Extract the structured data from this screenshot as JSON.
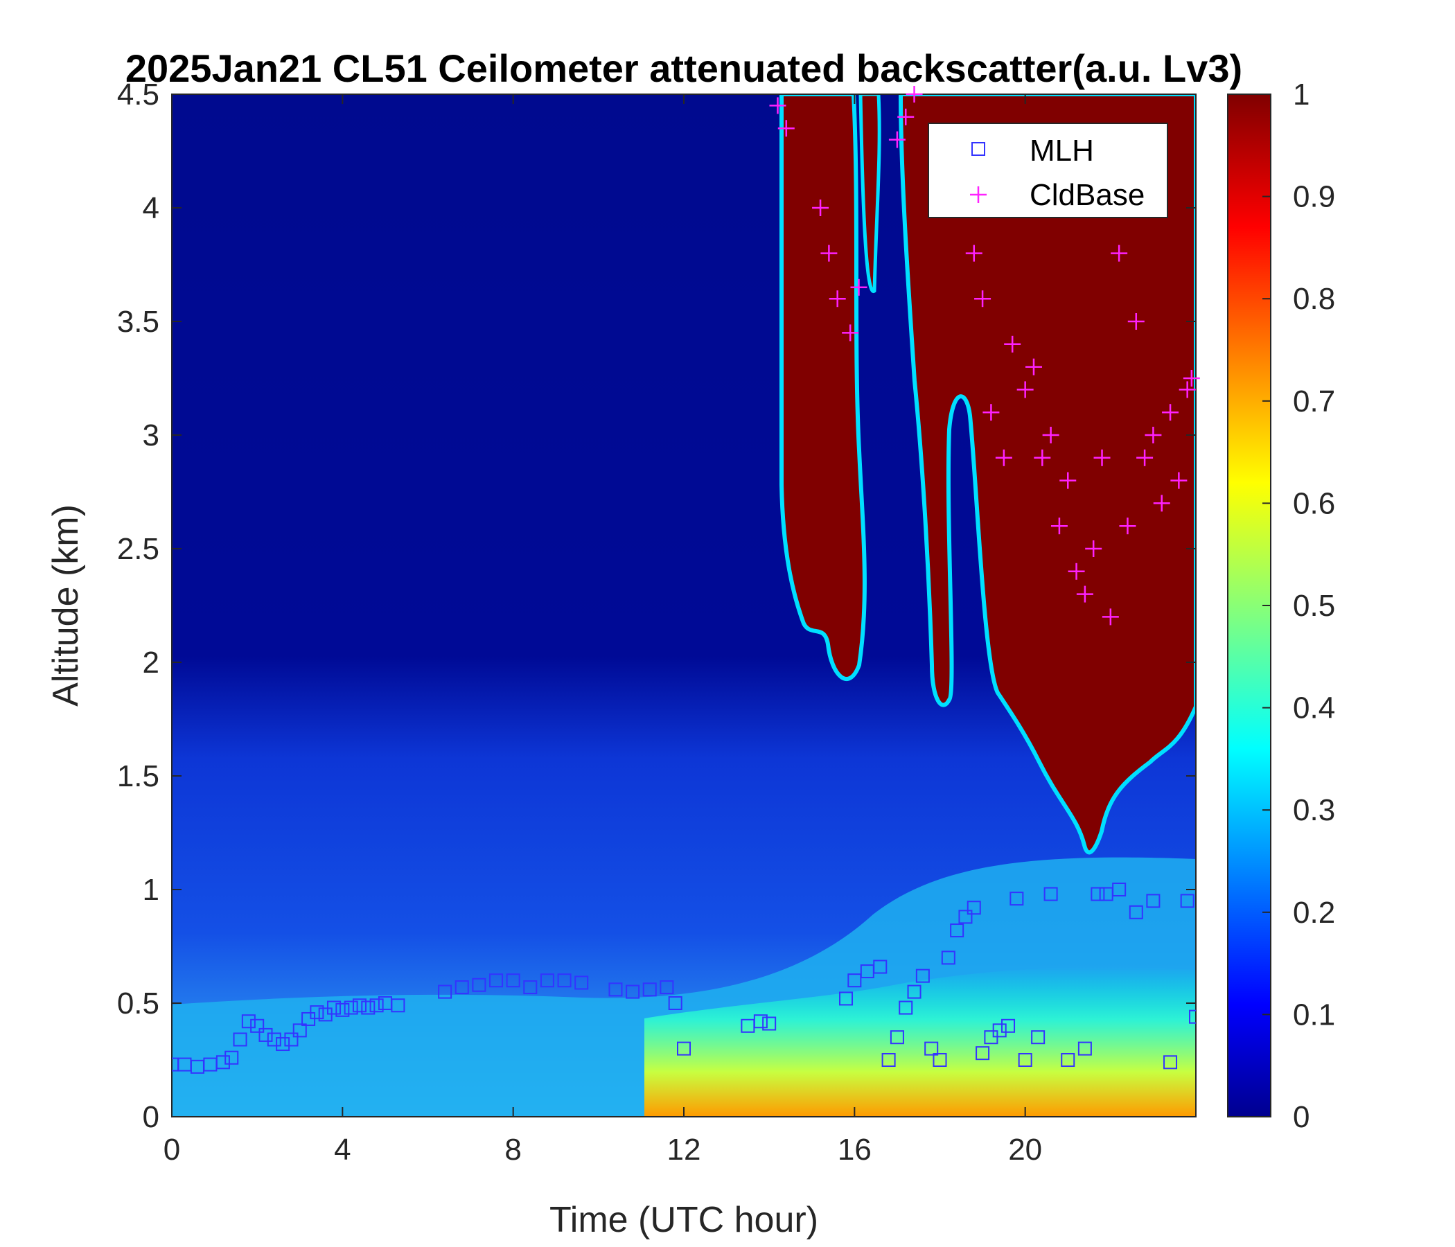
{
  "chart_data": {
    "type": "heatmap",
    "title": "2025Jan21 CL51 Ceilometer attenuated backscatter(a.u. Lv3)",
    "xlabel": "Time (UTC hour)",
    "ylabel": "Altitude (km)",
    "xlim": [
      0,
      24
    ],
    "ylim": [
      0,
      4.5
    ],
    "xticks": [
      "0",
      "4",
      "8",
      "12",
      "16",
      "20"
    ],
    "yticks": [
      "0",
      "0.5",
      "1",
      "1.5",
      "2",
      "2.5",
      "3",
      "3.5",
      "4",
      "4.5"
    ],
    "colorbar": {
      "colormap": "jet",
      "range": [
        0,
        1
      ],
      "ticks": [
        "0",
        "0.1",
        "0.2",
        "0.3",
        "0.4",
        "0.5",
        "0.6",
        "0.7",
        "0.8",
        "0.9",
        "1"
      ]
    },
    "legend": {
      "placement": "top-right",
      "entries": [
        {
          "name": "MLH",
          "marker": "square",
          "color": "#3333ff"
        },
        {
          "name": "CldBase",
          "marker": "plus",
          "color": "#ff22ff"
        }
      ]
    },
    "series": [
      {
        "name": "MLH",
        "x": [
          0.0,
          0.3,
          0.6,
          0.9,
          1.2,
          1.4,
          1.6,
          1.8,
          2.0,
          2.2,
          2.4,
          2.6,
          2.8,
          3.0,
          3.2,
          3.4,
          3.6,
          3.8,
          4.0,
          4.2,
          4.4,
          4.6,
          4.8,
          5.0,
          5.3,
          6.4,
          6.8,
          7.2,
          7.6,
          8.0,
          8.4,
          8.8,
          9.2,
          9.6,
          10.4,
          10.8,
          11.2,
          11.6,
          11.8,
          12.0,
          13.5,
          13.8,
          14.0,
          15.8,
          16.0,
          16.3,
          16.6,
          16.8,
          17.0,
          17.2,
          17.4,
          17.6,
          17.8,
          18.0,
          18.2,
          18.4,
          18.6,
          18.8,
          19.0,
          19.2,
          19.4,
          19.6,
          19.8,
          20.0,
          20.3,
          20.6,
          21.0,
          21.4,
          21.7,
          21.9,
          22.2,
          22.6,
          23.0,
          23.4,
          23.8,
          24.0
        ],
        "y": [
          0.23,
          0.23,
          0.22,
          0.23,
          0.24,
          0.26,
          0.34,
          0.42,
          0.4,
          0.36,
          0.34,
          0.32,
          0.34,
          0.38,
          0.43,
          0.46,
          0.45,
          0.48,
          0.47,
          0.48,
          0.49,
          0.48,
          0.49,
          0.5,
          0.49,
          0.55,
          0.57,
          0.58,
          0.6,
          0.6,
          0.57,
          0.6,
          0.6,
          0.59,
          0.56,
          0.55,
          0.56,
          0.57,
          0.5,
          0.3,
          0.4,
          0.42,
          0.41,
          0.52,
          0.6,
          0.64,
          0.66,
          0.25,
          0.35,
          0.48,
          0.55,
          0.62,
          0.3,
          0.25,
          0.7,
          0.82,
          0.88,
          0.92,
          0.28,
          0.35,
          0.38,
          0.4,
          0.96,
          0.25,
          0.35,
          0.98,
          0.25,
          0.3,
          0.98,
          0.98,
          1.0,
          0.9,
          0.95,
          0.24,
          0.95,
          0.44
        ]
      },
      {
        "name": "CldBase",
        "x": [
          14.2,
          14.4,
          15.2,
          15.4,
          15.6,
          15.9,
          16.1,
          17.0,
          17.2,
          17.4,
          18.8,
          19.0,
          19.2,
          19.5,
          19.7,
          20.0,
          20.2,
          20.4,
          20.6,
          20.8,
          21.0,
          21.2,
          21.4,
          21.6,
          21.8,
          22.0,
          22.2,
          22.4,
          22.6,
          22.8,
          23.0,
          23.2,
          23.4,
          23.6,
          23.8,
          23.9
        ],
        "y": [
          4.45,
          4.35,
          4.0,
          3.8,
          3.6,
          3.45,
          3.65,
          4.3,
          4.4,
          4.5,
          3.8,
          3.6,
          3.1,
          2.9,
          3.4,
          3.2,
          3.3,
          2.9,
          3.0,
          2.6,
          2.8,
          2.4,
          2.3,
          2.5,
          2.9,
          2.2,
          3.8,
          2.6,
          3.5,
          2.9,
          3.0,
          2.7,
          3.1,
          2.8,
          3.2,
          3.25
        ]
      }
    ]
  }
}
